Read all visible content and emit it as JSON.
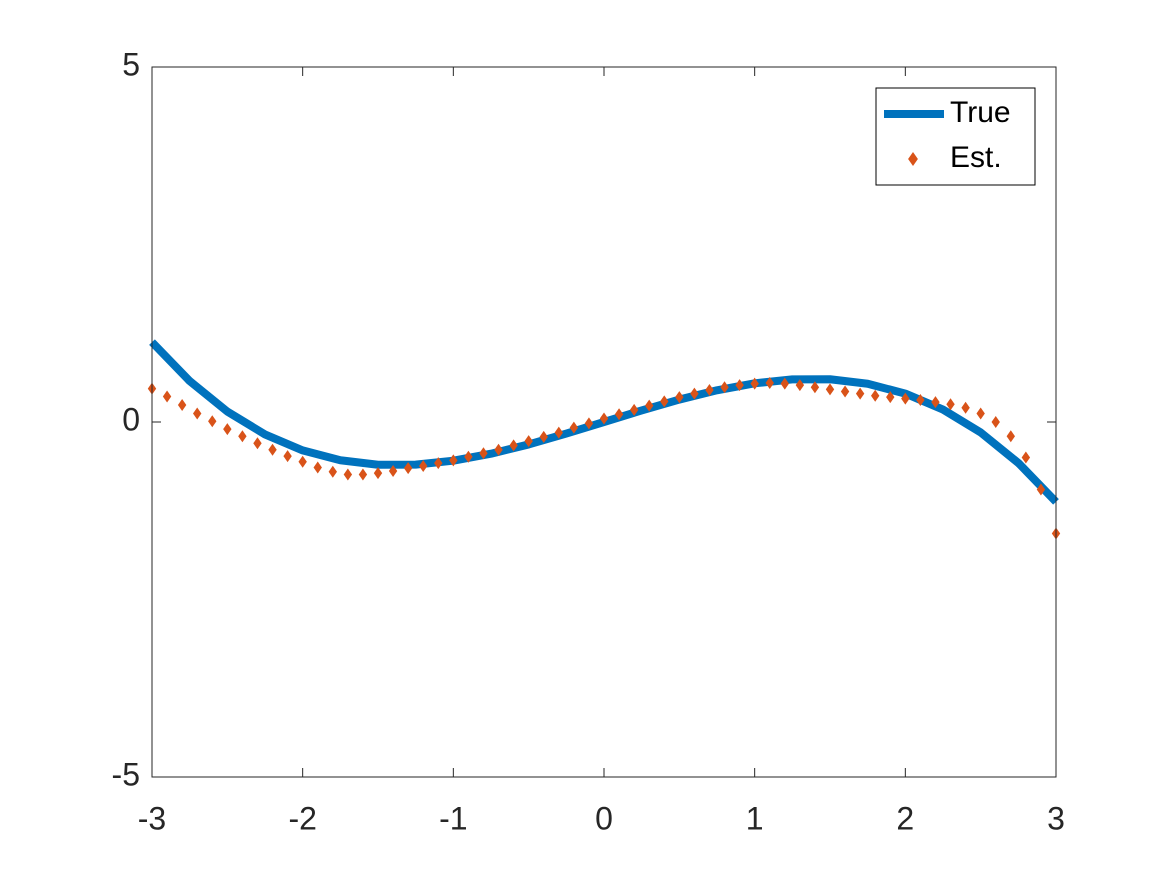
{
  "chart_data": {
    "type": "line",
    "xlim": [
      -3,
      3
    ],
    "ylim": [
      -5,
      5
    ],
    "xticks": [
      -3,
      -2,
      -1,
      0,
      1,
      2,
      3
    ],
    "yticks": [
      -5,
      0,
      5
    ],
    "legend": "upper right",
    "box": true,
    "series": [
      {
        "name": "True",
        "color": "#0072bd",
        "marker": "none",
        "x": [
          -3,
          -2.75,
          -2.5,
          -2.25,
          -2,
          -1.75,
          -1.5,
          -1.25,
          -1,
          -0.75,
          -0.5,
          -0.25,
          0,
          0.25,
          0.5,
          0.75,
          1,
          1.25,
          1.5,
          1.75,
          2,
          2.25,
          2.5,
          2.75,
          3
        ],
        "values": [
          1.125,
          0.577,
          0.147,
          -0.175,
          -0.4,
          -0.539,
          -0.602,
          -0.6,
          -0.545,
          -0.447,
          -0.316,
          -0.163,
          0,
          0.163,
          0.316,
          0.447,
          0.545,
          0.6,
          0.602,
          0.539,
          0.4,
          0.175,
          -0.147,
          -0.577,
          -1.125
        ]
      },
      {
        "name": "Est.",
        "color": "#d95319",
        "marker": "diamond",
        "x": [
          -3,
          -2.9,
          -2.8,
          -2.7,
          -2.6,
          -2.5,
          -2.4,
          -2.3,
          -2.2,
          -2.1,
          -2,
          -1.9,
          -1.8,
          -1.7,
          -1.6,
          -1.5,
          -1.4,
          -1.3,
          -1.2,
          -1.1,
          -1,
          -0.9,
          -0.8,
          -0.7,
          -0.6,
          -0.5,
          -0.4,
          -0.3,
          -0.2,
          -0.1,
          0,
          0.1,
          0.2,
          0.3,
          0.4,
          0.5,
          0.6,
          0.7,
          0.8,
          0.9,
          1,
          1.1,
          1.2,
          1.3,
          1.4,
          1.5,
          1.6,
          1.7,
          1.8,
          1.9,
          2,
          2.1,
          2.2,
          2.3,
          2.4,
          2.5,
          2.6,
          2.7,
          2.8,
          2.9,
          3
        ],
        "values": [
          0.47,
          0.36,
          0.24,
          0.12,
          0.01,
          -0.1,
          -0.2,
          -0.3,
          -0.39,
          -0.48,
          -0.56,
          -0.64,
          -0.7,
          -0.74,
          -0.74,
          -0.72,
          -0.69,
          -0.65,
          -0.62,
          -0.58,
          -0.54,
          -0.49,
          -0.44,
          -0.39,
          -0.33,
          -0.27,
          -0.21,
          -0.15,
          -0.08,
          -0.02,
          0.05,
          0.11,
          0.17,
          0.23,
          0.29,
          0.35,
          0.4,
          0.45,
          0.49,
          0.52,
          0.54,
          0.55,
          0.54,
          0.52,
          0.49,
          0.46,
          0.43,
          0.4,
          0.37,
          0.35,
          0.33,
          0.31,
          0.28,
          0.25,
          0.2,
          0.12,
          0,
          -0.2,
          -0.5,
          -0.95,
          -1.57
        ]
      }
    ]
  }
}
